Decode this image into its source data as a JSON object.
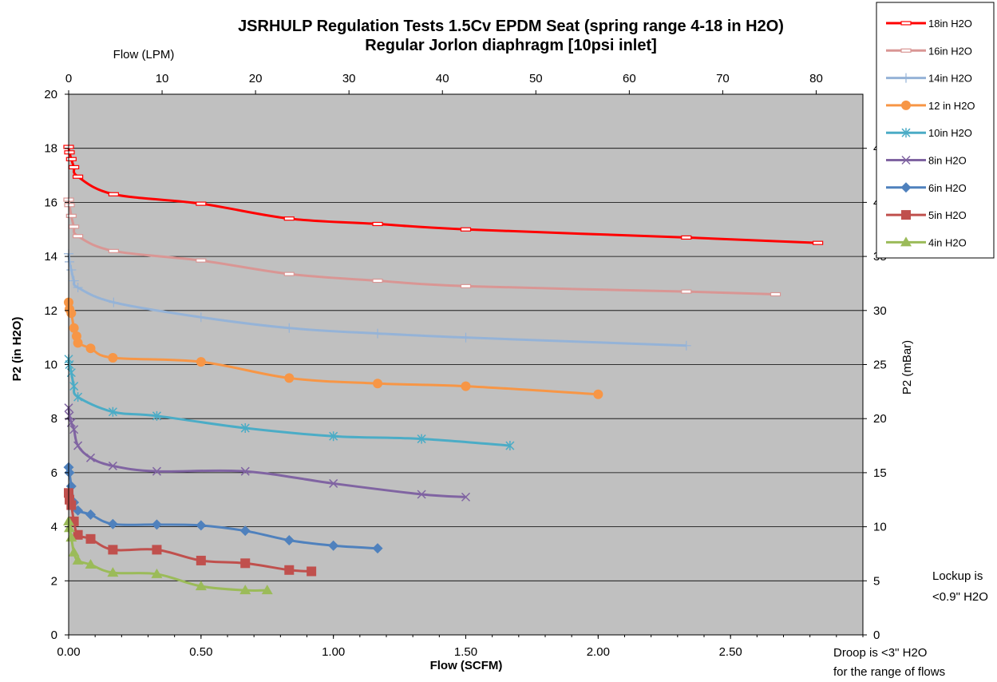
{
  "chart_data": {
    "type": "line",
    "title": "JSRHULP Regulation Tests 1.5Cv EPDM Seat (spring range 4-18 in H2O)",
    "subtitle": "Regular Jorlon diaphragm [10psi inlet]",
    "xlabel": "Flow (SCFM)",
    "ylabel": "P2 (in H2O)",
    "x2label": "Flow (LPM)",
    "y2label": "P2 (mBar)",
    "xlim": [
      0,
      3.0
    ],
    "ylim": [
      0,
      20
    ],
    "x2lim": [
      0,
      85
    ],
    "y2lim": [
      0,
      50
    ],
    "xticks": [
      "0.00",
      "0.50",
      "1.00",
      "1.50",
      "2.00",
      "2.50"
    ],
    "yticks": [
      "0",
      "2",
      "4",
      "6",
      "8",
      "10",
      "12",
      "14",
      "16",
      "18",
      "20"
    ],
    "x2ticks": [
      "0",
      "10",
      "20",
      "30",
      "40",
      "50",
      "60",
      "70",
      "80"
    ],
    "y2ticks": [
      "0",
      "5",
      "10",
      "15",
      "20",
      "25",
      "30",
      "35",
      "40",
      "45"
    ],
    "grid": "horizontal",
    "legend_position": "top-right",
    "series": [
      {
        "name": "18in H2O",
        "color": "#ff0000",
        "marker": "dash",
        "points": [
          [
            0,
            18.05
          ],
          [
            0.003,
            17.85
          ],
          [
            0.01,
            17.6
          ],
          [
            0.02,
            17.3
          ],
          [
            0.035,
            16.95
          ],
          [
            0.17,
            16.3
          ],
          [
            0.5,
            15.95
          ],
          [
            0.833,
            15.4
          ],
          [
            1.167,
            15.2
          ],
          [
            1.5,
            15.0
          ],
          [
            2.333,
            14.7
          ],
          [
            2.83,
            14.5
          ]
        ]
      },
      {
        "name": "16in H2O",
        "color": "#d99694",
        "marker": "dash",
        "points": [
          [
            0,
            16.1
          ],
          [
            0.003,
            15.9
          ],
          [
            0.01,
            15.5
          ],
          [
            0.02,
            15.1
          ],
          [
            0.035,
            14.75
          ],
          [
            0.17,
            14.2
          ],
          [
            0.5,
            13.85
          ],
          [
            0.833,
            13.35
          ],
          [
            1.167,
            13.1
          ],
          [
            1.5,
            12.9
          ],
          [
            2.333,
            12.7
          ],
          [
            2.67,
            12.6
          ]
        ]
      },
      {
        "name": "14in H2O",
        "color": "#95b3d7",
        "marker": "plus",
        "points": [
          [
            0,
            14.1
          ],
          [
            0.003,
            13.8
          ],
          [
            0.01,
            13.5
          ],
          [
            0.02,
            13.1
          ],
          [
            0.035,
            12.85
          ],
          [
            0.17,
            12.3
          ],
          [
            0.5,
            11.75
          ],
          [
            0.833,
            11.35
          ],
          [
            1.167,
            11.15
          ],
          [
            1.5,
            11.0
          ],
          [
            2.333,
            10.7
          ]
        ]
      },
      {
        "name": "12 in H2O",
        "color": "#f79646",
        "marker": "circle",
        "points": [
          [
            0,
            12.3
          ],
          [
            0.003,
            12.05
          ],
          [
            0.01,
            11.9
          ],
          [
            0.02,
            11.35
          ],
          [
            0.03,
            11.05
          ],
          [
            0.035,
            10.8
          ],
          [
            0.083,
            10.6
          ],
          [
            0.167,
            10.25
          ],
          [
            0.5,
            10.1
          ],
          [
            0.833,
            9.5
          ],
          [
            1.167,
            9.3
          ],
          [
            1.5,
            9.2
          ],
          [
            2.0,
            8.9
          ]
        ]
      },
      {
        "name": "10in H2O",
        "color": "#4bacc6",
        "marker": "asterisk",
        "points": [
          [
            0,
            10.2
          ],
          [
            0.003,
            10.0
          ],
          [
            0.01,
            9.7
          ],
          [
            0.02,
            9.2
          ],
          [
            0.035,
            8.8
          ],
          [
            0.167,
            8.25
          ],
          [
            0.333,
            8.1
          ],
          [
            0.667,
            7.65
          ],
          [
            1.0,
            7.35
          ],
          [
            1.333,
            7.25
          ],
          [
            1.667,
            7.0
          ]
        ]
      },
      {
        "name": "8in H2O",
        "color": "#8064a2",
        "marker": "x",
        "points": [
          [
            0,
            8.4
          ],
          [
            0.003,
            8.1
          ],
          [
            0.01,
            7.85
          ],
          [
            0.02,
            7.6
          ],
          [
            0.035,
            7.0
          ],
          [
            0.083,
            6.55
          ],
          [
            0.167,
            6.25
          ],
          [
            0.333,
            6.05
          ],
          [
            0.667,
            6.05
          ],
          [
            1.0,
            5.6
          ],
          [
            1.333,
            5.2
          ],
          [
            1.5,
            5.1
          ]
        ]
      },
      {
        "name": "6in H2O",
        "color": "#4f81bd",
        "marker": "diamond",
        "points": [
          [
            0,
            6.2
          ],
          [
            0.003,
            6.0
          ],
          [
            0.01,
            5.5
          ],
          [
            0.02,
            4.9
          ],
          [
            0.035,
            4.6
          ],
          [
            0.083,
            4.45
          ],
          [
            0.167,
            4.1
          ],
          [
            0.333,
            4.08
          ],
          [
            0.5,
            4.05
          ],
          [
            0.667,
            3.85
          ],
          [
            0.833,
            3.5
          ],
          [
            1.0,
            3.3
          ],
          [
            1.167,
            3.2
          ]
        ]
      },
      {
        "name": "5in H2O",
        "color": "#c0504d",
        "marker": "square",
        "points": [
          [
            0,
            5.25
          ],
          [
            0.003,
            5.0
          ],
          [
            0.01,
            4.8
          ],
          [
            0.02,
            4.2
          ],
          [
            0.035,
            3.7
          ],
          [
            0.083,
            3.55
          ],
          [
            0.167,
            3.15
          ],
          [
            0.333,
            3.15
          ],
          [
            0.5,
            2.75
          ],
          [
            0.667,
            2.65
          ],
          [
            0.833,
            2.4
          ],
          [
            0.917,
            2.35
          ]
        ]
      },
      {
        "name": "4in H2O",
        "color": "#9bbb59",
        "marker": "triangle",
        "points": [
          [
            0,
            4.2
          ],
          [
            0.003,
            3.95
          ],
          [
            0.01,
            3.6
          ],
          [
            0.02,
            3.05
          ],
          [
            0.035,
            2.75
          ],
          [
            0.083,
            2.6
          ],
          [
            0.167,
            2.3
          ],
          [
            0.333,
            2.25
          ],
          [
            0.5,
            1.8
          ],
          [
            0.667,
            1.65
          ],
          [
            0.75,
            1.65
          ]
        ]
      }
    ],
    "annotations": [
      "Lockup is",
      "<0.9\" H2O",
      "Droop is <3\" H2O",
      "for the range of flows"
    ]
  }
}
